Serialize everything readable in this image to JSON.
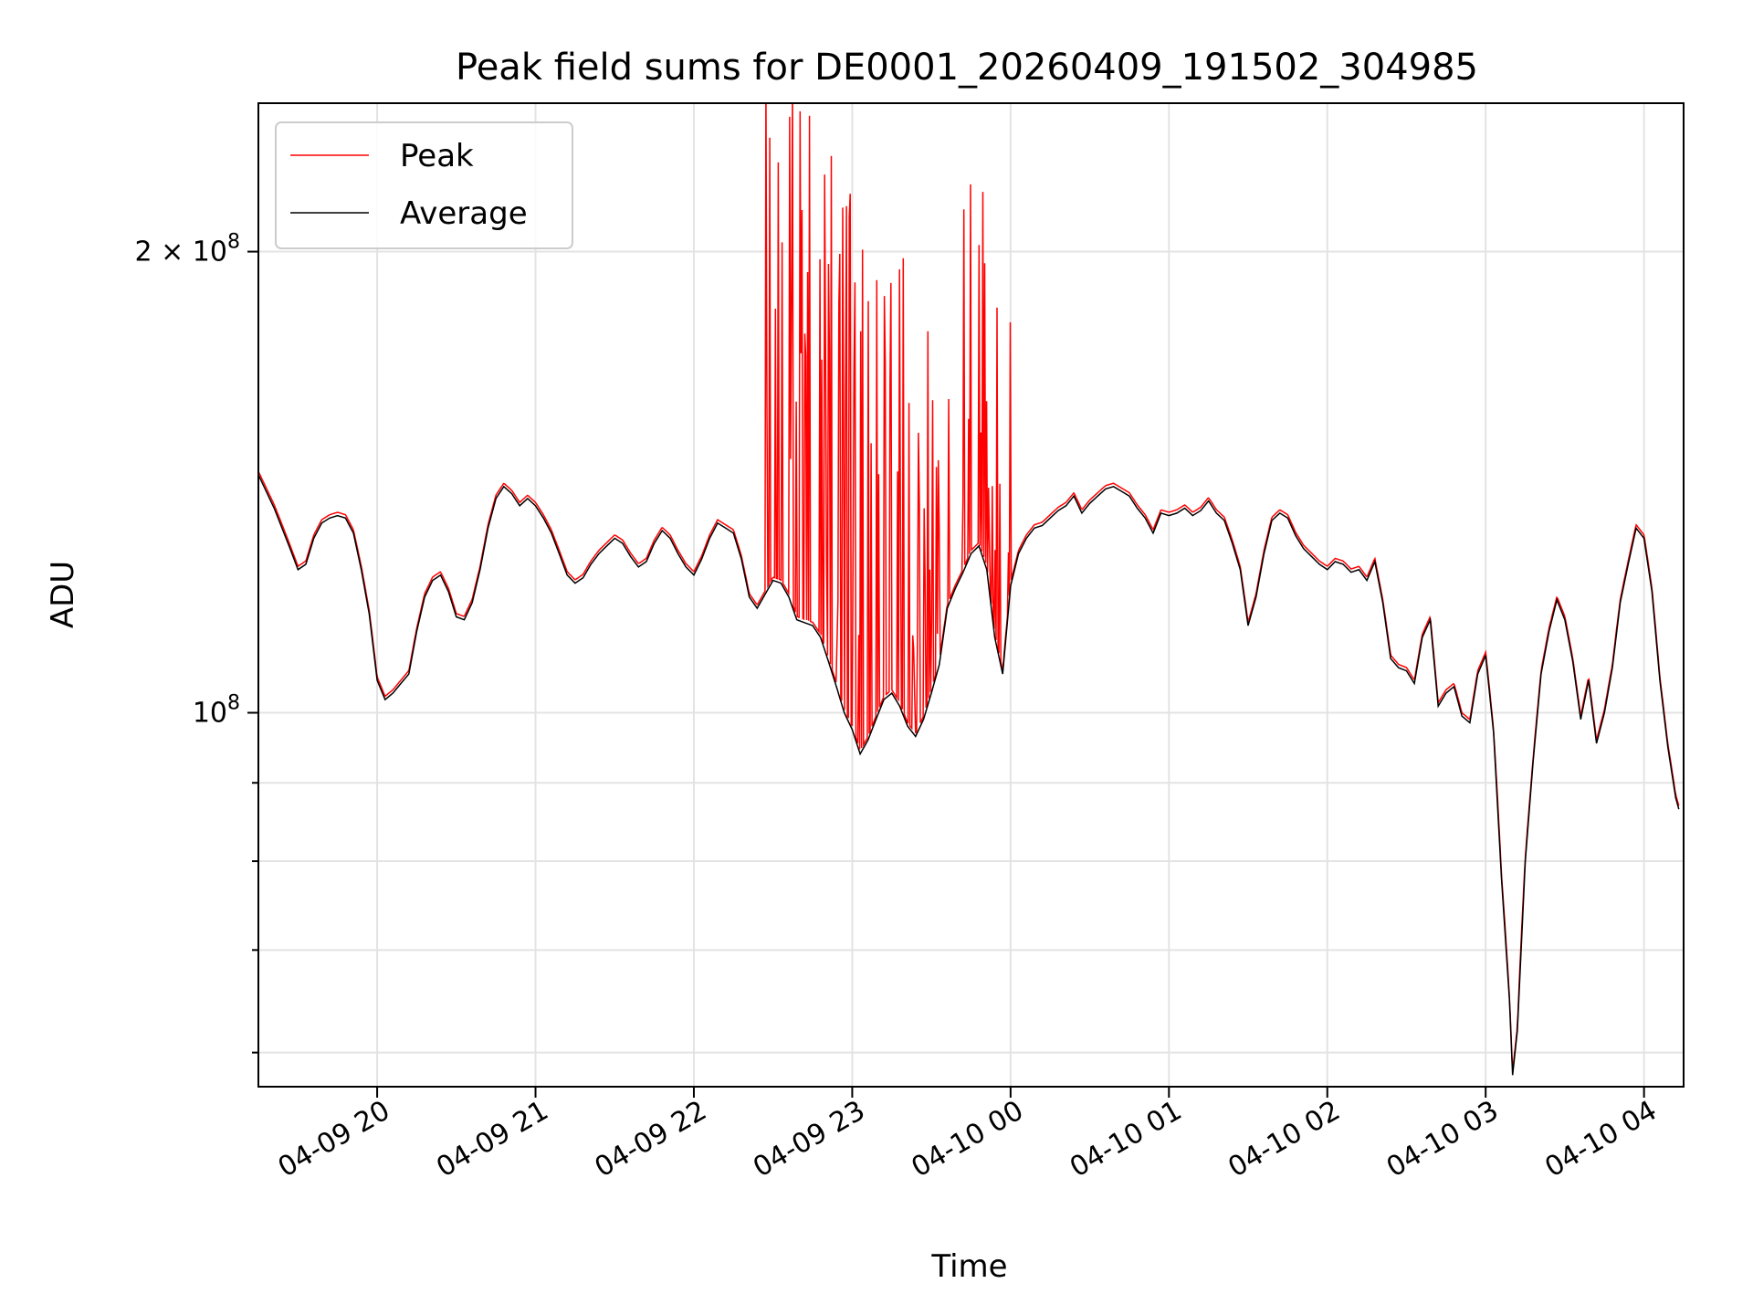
{
  "chart_data": {
    "type": "line",
    "title": "Peak field sums for DE0001_20260409_191502_304985",
    "xlabel": "Time",
    "ylabel": "ADU",
    "yscale": "log",
    "grid": true,
    "legend_position": "top-left",
    "x_unit": "hours since 04-09 19:15",
    "xlim": [
      0,
      9.0
    ],
    "ylim": [
      57000000,
      250000000
    ],
    "x_ticks": [
      {
        "x": 0.75,
        "label": "04-09 20"
      },
      {
        "x": 1.75,
        "label": "04-09 21"
      },
      {
        "x": 2.75,
        "label": "04-09 22"
      },
      {
        "x": 3.75,
        "label": "04-09 23"
      },
      {
        "x": 4.75,
        "label": "04-10 00"
      },
      {
        "x": 5.75,
        "label": "04-10 01"
      },
      {
        "x": 6.75,
        "label": "04-10 02"
      },
      {
        "x": 7.75,
        "label": "04-10 03"
      },
      {
        "x": 8.75,
        "label": "04-10 04"
      }
    ],
    "y_ticks": [
      {
        "value": 100000000,
        "base": "10",
        "exp": "8",
        "coef": ""
      },
      {
        "value": 200000000,
        "base": "10",
        "exp": "8",
        "coef": "2 × "
      }
    ],
    "y_minor_ticks": [
      60000000,
      70000000,
      80000000,
      90000000
    ],
    "series": [
      {
        "name": "Average",
        "color": "#000000",
        "points": [
          [
            0.0,
            143000000
          ],
          [
            0.1,
            136000000
          ],
          [
            0.2,
            128000000
          ],
          [
            0.25,
            124000000
          ],
          [
            0.3,
            125000000
          ],
          [
            0.35,
            130000000
          ],
          [
            0.4,
            133000000
          ],
          [
            0.45,
            134000000
          ],
          [
            0.5,
            134500000
          ],
          [
            0.55,
            134000000
          ],
          [
            0.6,
            131000000
          ],
          [
            0.65,
            124000000
          ],
          [
            0.7,
            116000000
          ],
          [
            0.75,
            105000000
          ],
          [
            0.8,
            102000000
          ],
          [
            0.85,
            103000000
          ],
          [
            0.9,
            104500000
          ],
          [
            0.95,
            106000000
          ],
          [
            1.0,
            113000000
          ],
          [
            1.05,
            119000000
          ],
          [
            1.1,
            122000000
          ],
          [
            1.15,
            123000000
          ],
          [
            1.2,
            120000000
          ],
          [
            1.25,
            115500000
          ],
          [
            1.3,
            115000000
          ],
          [
            1.35,
            118000000
          ],
          [
            1.4,
            124000000
          ],
          [
            1.45,
            132000000
          ],
          [
            1.5,
            138000000
          ],
          [
            1.55,
            140500000
          ],
          [
            1.6,
            139000000
          ],
          [
            1.65,
            136500000
          ],
          [
            1.7,
            138000000
          ],
          [
            1.75,
            136500000
          ],
          [
            1.8,
            134000000
          ],
          [
            1.85,
            131000000
          ],
          [
            1.9,
            127000000
          ],
          [
            1.95,
            123000000
          ],
          [
            2.0,
            121500000
          ],
          [
            2.05,
            122500000
          ],
          [
            2.1,
            125000000
          ],
          [
            2.15,
            127000000
          ],
          [
            2.2,
            128500000
          ],
          [
            2.25,
            130000000
          ],
          [
            2.3,
            129000000
          ],
          [
            2.35,
            126500000
          ],
          [
            2.4,
            124500000
          ],
          [
            2.45,
            125500000
          ],
          [
            2.5,
            129000000
          ],
          [
            2.55,
            131500000
          ],
          [
            2.6,
            130000000
          ],
          [
            2.65,
            127000000
          ],
          [
            2.7,
            124500000
          ],
          [
            2.75,
            123000000
          ],
          [
            2.8,
            126000000
          ],
          [
            2.85,
            130000000
          ],
          [
            2.9,
            133000000
          ],
          [
            2.95,
            132000000
          ],
          [
            3.0,
            131000000
          ],
          [
            3.05,
            126000000
          ],
          [
            3.1,
            119000000
          ],
          [
            3.15,
            117000000
          ],
          [
            3.2,
            119500000
          ],
          [
            3.25,
            122000000
          ],
          [
            3.3,
            121500000
          ],
          [
            3.35,
            119000000
          ],
          [
            3.4,
            115000000
          ],
          [
            3.45,
            114500000
          ],
          [
            3.5,
            114000000
          ],
          [
            3.55,
            112000000
          ],
          [
            3.6,
            108000000
          ],
          [
            3.65,
            104000000
          ],
          [
            3.7,
            100000000
          ],
          [
            3.75,
            97500000
          ],
          [
            3.8,
            94000000
          ],
          [
            3.85,
            96000000
          ],
          [
            3.9,
            99000000
          ],
          [
            3.95,
            102000000
          ],
          [
            4.0,
            103000000
          ],
          [
            4.05,
            101000000
          ],
          [
            4.1,
            98000000
          ],
          [
            4.15,
            96500000
          ],
          [
            4.2,
            99000000
          ],
          [
            4.25,
            103000000
          ],
          [
            4.3,
            107500000
          ],
          [
            4.35,
            117000000
          ],
          [
            4.4,
            120500000
          ],
          [
            4.45,
            123500000
          ],
          [
            4.5,
            127000000
          ],
          [
            4.55,
            128500000
          ],
          [
            4.6,
            124000000
          ],
          [
            4.65,
            112000000
          ],
          [
            4.7,
            106000000
          ],
          [
            4.75,
            121000000
          ],
          [
            4.8,
            127000000
          ],
          [
            4.85,
            130000000
          ],
          [
            4.9,
            132000000
          ],
          [
            4.95,
            132500000
          ],
          [
            5.0,
            134000000
          ],
          [
            5.05,
            135500000
          ],
          [
            5.1,
            136500000
          ],
          [
            5.15,
            138500000
          ],
          [
            5.2,
            135000000
          ],
          [
            5.25,
            137000000
          ],
          [
            5.3,
            138500000
          ],
          [
            5.35,
            140000000
          ],
          [
            5.4,
            140500000
          ],
          [
            5.45,
            139500000
          ],
          [
            5.5,
            138500000
          ],
          [
            5.55,
            136000000
          ],
          [
            5.6,
            134000000
          ],
          [
            5.65,
            131000000
          ],
          [
            5.7,
            135000000
          ],
          [
            5.75,
            134500000
          ],
          [
            5.8,
            135000000
          ],
          [
            5.85,
            136000000
          ],
          [
            5.9,
            134500000
          ],
          [
            5.95,
            135500000
          ],
          [
            6.0,
            137500000
          ],
          [
            6.05,
            135000000
          ],
          [
            6.1,
            133500000
          ],
          [
            6.15,
            129000000
          ],
          [
            6.2,
            124000000
          ],
          [
            6.25,
            114000000
          ],
          [
            6.3,
            119000000
          ],
          [
            6.35,
            127000000
          ],
          [
            6.4,
            133500000
          ],
          [
            6.45,
            135000000
          ],
          [
            6.5,
            134000000
          ],
          [
            6.55,
            130500000
          ],
          [
            6.6,
            128000000
          ],
          [
            6.65,
            126500000
          ],
          [
            6.7,
            125000000
          ],
          [
            6.75,
            124000000
          ],
          [
            6.8,
            125500000
          ],
          [
            6.85,
            125000000
          ],
          [
            6.9,
            123500000
          ],
          [
            6.95,
            124000000
          ],
          [
            7.0,
            122000000
          ],
          [
            7.05,
            125500000
          ],
          [
            7.1,
            118000000
          ],
          [
            7.15,
            108500000
          ],
          [
            7.2,
            107000000
          ],
          [
            7.25,
            106500000
          ],
          [
            7.3,
            104500000
          ],
          [
            7.35,
            112000000
          ],
          [
            7.4,
            115000000
          ],
          [
            7.45,
            101000000
          ],
          [
            7.5,
            103000000
          ],
          [
            7.55,
            104000000
          ],
          [
            7.6,
            99500000
          ],
          [
            7.65,
            98500000
          ],
          [
            7.7,
            106000000
          ],
          [
            7.75,
            109000000
          ],
          [
            7.8,
            97000000
          ],
          [
            7.85,
            78000000
          ],
          [
            7.9,
            65000000
          ],
          [
            7.92,
            58000000
          ],
          [
            7.95,
            62000000
          ],
          [
            8.0,
            80000000
          ],
          [
            8.05,
            93000000
          ],
          [
            8.1,
            106000000
          ],
          [
            8.15,
            113000000
          ],
          [
            8.2,
            118500000
          ],
          [
            8.25,
            115000000
          ],
          [
            8.3,
            108000000
          ],
          [
            8.35,
            99000000
          ],
          [
            8.4,
            105000000
          ],
          [
            8.45,
            95500000
          ],
          [
            8.5,
            100000000
          ],
          [
            8.55,
            107000000
          ],
          [
            8.6,
            118000000
          ],
          [
            8.65,
            125000000
          ],
          [
            8.7,
            132000000
          ],
          [
            8.75,
            130000000
          ],
          [
            8.8,
            120000000
          ],
          [
            8.85,
            105000000
          ],
          [
            8.9,
            95000000
          ],
          [
            8.95,
            88000000
          ],
          [
            8.97,
            86500000
          ]
        ]
      },
      {
        "name": "Peak",
        "color": "#ff0000",
        "points": []
      }
    ]
  }
}
